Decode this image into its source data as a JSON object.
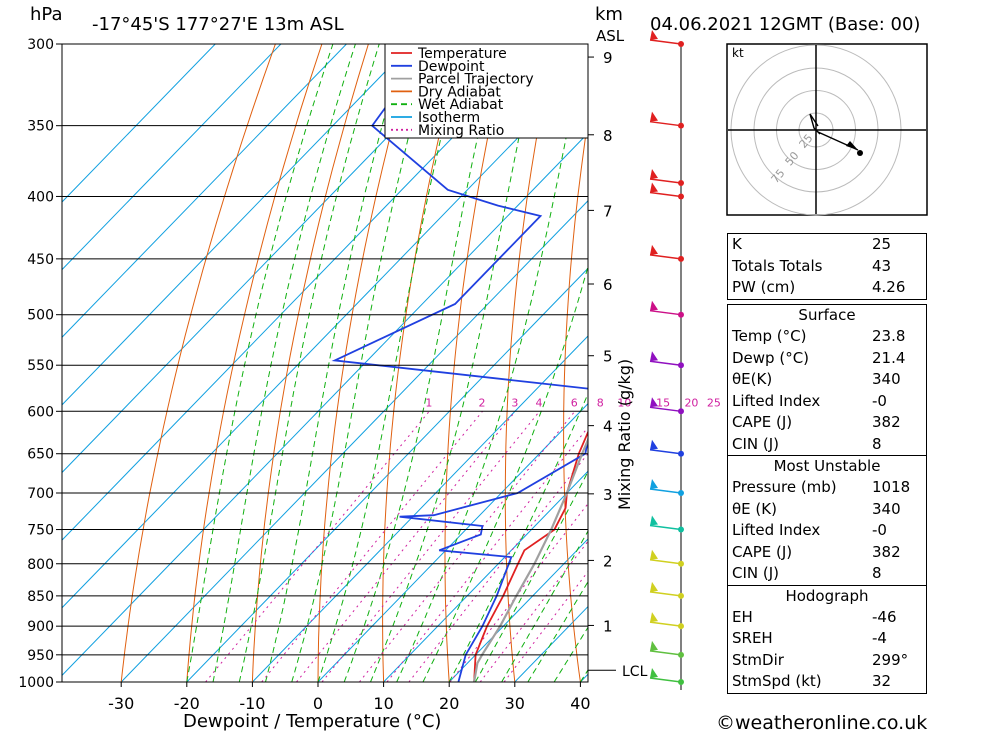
{
  "header": {
    "hpa_label": "hPa",
    "location": "-17°45'S  177°27'E  13m  ASL",
    "km_label": "km",
    "asl_label": "ASL",
    "datetime": "04.06.2021  12GMT  (Base: 00)"
  },
  "chart_data": {
    "type": "line",
    "title": "Skew-T log-P diagram",
    "xlabel": "Dewpoint / Temperature (°C)",
    "ylabel": "hPa",
    "right_label": "Mixing Ratio (g/kg)",
    "x_ticks": [
      -30,
      -20,
      -10,
      0,
      10,
      20,
      30,
      40
    ],
    "pressure_ticks": [
      300,
      350,
      400,
      450,
      500,
      550,
      600,
      650,
      700,
      750,
      800,
      850,
      900,
      950,
      1000
    ],
    "km_ticks": [
      1,
      2,
      3,
      4,
      5,
      6,
      7,
      8,
      9
    ],
    "lcl_label": "LCL",
    "mixing_ratio_labels": [
      "1",
      "2",
      "3",
      "4",
      "6",
      "8",
      "10",
      "15",
      "20",
      "25"
    ],
    "legend": [
      "Temperature",
      "Dewpoint",
      "Parcel Trajectory",
      "Dry Adiabat",
      "Wet Adiabat",
      "Isotherm",
      "Mixing Ratio"
    ],
    "series": [
      {
        "name": "Temperature",
        "color": "#e02020",
        "points": [
          [
            1000,
            23.8
          ],
          [
            950,
            20
          ],
          [
            900,
            17.5
          ],
          [
            850,
            15.5
          ],
          [
            800,
            13
          ],
          [
            780,
            12
          ],
          [
            750,
            13.5
          ],
          [
            720,
            12
          ],
          [
            700,
            10
          ],
          [
            650,
            6
          ],
          [
            600,
            2.5
          ],
          [
            550,
            -2
          ],
          [
            500,
            -6
          ],
          [
            450,
            -13
          ],
          [
            420,
            -19
          ],
          [
            405,
            -22
          ],
          [
            390,
            -20
          ],
          [
            350,
            -26
          ],
          [
            300,
            -34
          ]
        ]
      },
      {
        "name": "Dewpoint",
        "color": "#2040e0",
        "points": [
          [
            1000,
            21.4
          ],
          [
            950,
            18.5
          ],
          [
            900,
            16.8
          ],
          [
            850,
            14.5
          ],
          [
            790,
            11
          ],
          [
            780,
            -1
          ],
          [
            757,
            3
          ],
          [
            745,
            2
          ],
          [
            732,
            -12
          ],
          [
            730,
            -7
          ],
          [
            700,
            2.5
          ],
          [
            650,
            7
          ],
          [
            600,
            2
          ],
          [
            575,
            -2
          ],
          [
            545,
            -45
          ],
          [
            490,
            -35
          ],
          [
            415,
            -35
          ],
          [
            407,
            -43
          ],
          [
            395,
            -53
          ],
          [
            350,
            -74
          ],
          [
            300,
            -77
          ]
        ]
      },
      {
        "name": "Parcel Trajectory",
        "color": "#a0a0a0",
        "points": [
          [
            1000,
            23.8
          ],
          [
            965,
            21.5
          ],
          [
            950,
            21
          ],
          [
            900,
            19.5
          ],
          [
            850,
            17.5
          ],
          [
            800,
            15.5
          ],
          [
            750,
            13
          ],
          [
            700,
            10
          ],
          [
            650,
            6.5
          ],
          [
            600,
            3
          ],
          [
            550,
            -1
          ],
          [
            500,
            -5.5
          ],
          [
            450,
            -11
          ],
          [
            400,
            -17
          ],
          [
            350,
            -24.5
          ],
          [
            300,
            -34
          ]
        ]
      }
    ],
    "wind_barbs": [
      {
        "p": 300,
        "color": "#e02020"
      },
      {
        "p": 350,
        "color": "#e02020"
      },
      {
        "p": 390,
        "color": "#e02020"
      },
      {
        "p": 400,
        "color": "#e02020"
      },
      {
        "p": 450,
        "color": "#e02020"
      },
      {
        "p": 500,
        "color": "#cc1088"
      },
      {
        "p": 550,
        "color": "#9010c0"
      },
      {
        "p": 600,
        "color": "#9010c0"
      },
      {
        "p": 650,
        "color": "#2040e0"
      },
      {
        "p": 700,
        "color": "#10a0e0"
      },
      {
        "p": 750,
        "color": "#10c0a0"
      },
      {
        "p": 800,
        "color": "#d0d020"
      },
      {
        "p": 850,
        "color": "#d0d020"
      },
      {
        "p": 900,
        "color": "#d0d020"
      },
      {
        "p": 950,
        "color": "#60c040"
      },
      {
        "p": 1000,
        "color": "#40c040"
      }
    ]
  },
  "hodograph": {
    "unit": "kt",
    "ring_labels": [
      "25",
      "50",
      "75"
    ]
  },
  "indices": {
    "general": [
      {
        "label": "K",
        "value": "25"
      },
      {
        "label": "Totals Totals",
        "value": "43"
      },
      {
        "label": "PW (cm)",
        "value": "4.26"
      }
    ],
    "surface": {
      "title": "Surface",
      "rows": [
        {
          "label": "Temp (°C)",
          "value": "23.8"
        },
        {
          "label": "Dewp (°C)",
          "value": "21.4"
        },
        {
          "label": "θE(K)",
          "value": "340"
        },
        {
          "label": "Lifted Index",
          "value": "-0"
        },
        {
          "label": "CAPE (J)",
          "value": "382"
        },
        {
          "label": "CIN (J)",
          "value": "8"
        }
      ]
    },
    "most_unstable": {
      "title": "Most Unstable",
      "rows": [
        {
          "label": "Pressure (mb)",
          "value": "1018"
        },
        {
          "label": "θE (K)",
          "value": "340"
        },
        {
          "label": "Lifted Index",
          "value": "-0"
        },
        {
          "label": "CAPE (J)",
          "value": "382"
        },
        {
          "label": "CIN (J)",
          "value": "8"
        }
      ]
    },
    "hodograph": {
      "title": "Hodograph",
      "rows": [
        {
          "label": "EH",
          "value": "-46"
        },
        {
          "label": "SREH",
          "value": "-4"
        },
        {
          "label": "StmDir",
          "value": "299°"
        },
        {
          "label": "StmSpd (kt)",
          "value": "32"
        }
      ]
    }
  },
  "footer": {
    "copyright": "©weatheronline.co.uk"
  }
}
